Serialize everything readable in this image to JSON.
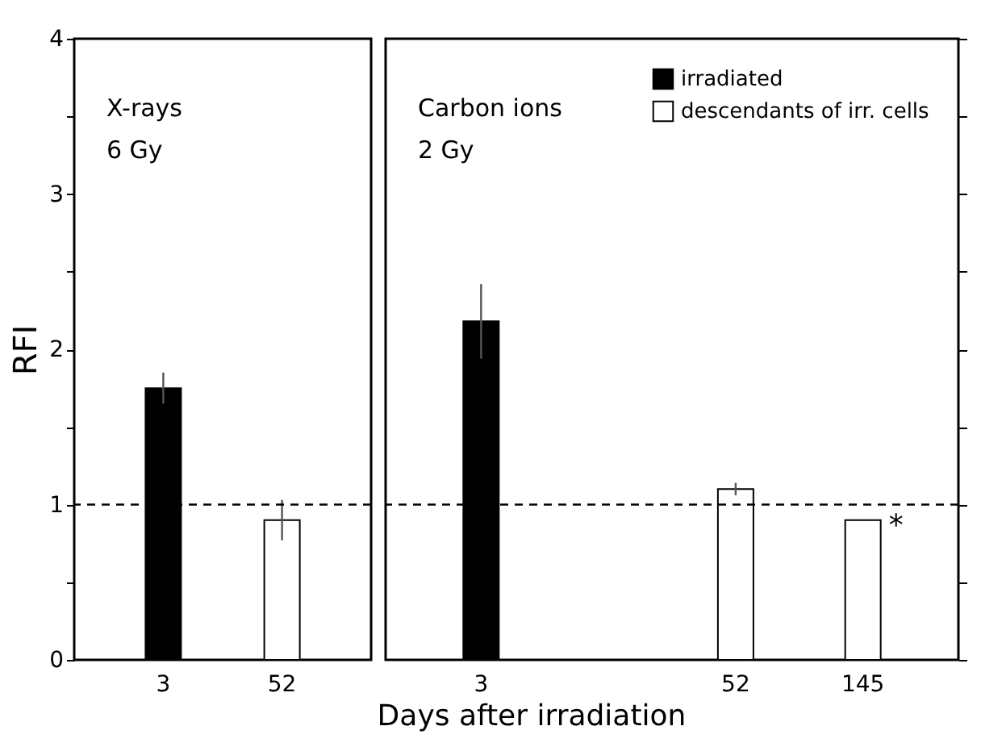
{
  "chart_data": [
    {
      "type": "bar",
      "ylabel": "RFI",
      "categories": [
        "3",
        "52"
      ],
      "ylim": [
        0,
        4
      ],
      "yticks": [
        0,
        {
          "value": 0.5,
          "label": null
        },
        1,
        {
          "value": 1.5,
          "label": null
        },
        2,
        {
          "value": 2.5,
          "label": null
        },
        3,
        {
          "value": 3.5,
          "label": null
        },
        4
      ],
      "grid": false,
      "legend": false,
      "annotations": [
        "X-rays\n6 Gy"
      ],
      "ref_lines": [
        {
          "axis": "y",
          "value": 1,
          "color": "#000000",
          "line_style": "dashed"
        }
      ],
      "series": [
        {
          "color": "#000000",
          "values": [
            1.75,
            null
          ],
          "errors": [
            0.1,
            null
          ]
        },
        {
          "color": "#ffffff",
          "values": [
            null,
            0.9
          ],
          "errors": [
            null,
            0.13
          ]
        }
      ]
    },
    {
      "type": "bar",
      "xlabel": "Days after irradiation",
      "categories": [
        "3",
        null,
        "52",
        "145"
      ],
      "ylim": [
        0,
        4
      ],
      "yticks": [
        0,
        {
          "value": 0.5,
          "label": null
        },
        1,
        {
          "value": 1.5,
          "label": null
        },
        2,
        {
          "value": 2.5,
          "label": null
        },
        3,
        {
          "value": 3.5,
          "label": null
        },
        4
      ],
      "grid": false,
      "legend": "top right",
      "tick_labels": "x",
      "annotations": [
        "Carbon ions\n2 Gy",
        {
          "text": "*",
          "x": "145",
          "y": 0.9
        }
      ],
      "ref_lines": [
        {
          "axis": "y",
          "value": 1,
          "color": "#000000",
          "line_style": "dashed"
        }
      ],
      "series": [
        {
          "name": "irradiated",
          "color": "#000000",
          "values": [
            2.18,
            null,
            null,
            null
          ],
          "errors": [
            0.24,
            null,
            null,
            null
          ]
        },
        {
          "name": "descendants of irr. cells",
          "color": "#ffffff",
          "values": [
            null,
            null,
            1.1,
            0.9
          ],
          "errors": [
            null,
            null,
            0.04,
            null
          ]
        }
      ]
    }
  ]
}
